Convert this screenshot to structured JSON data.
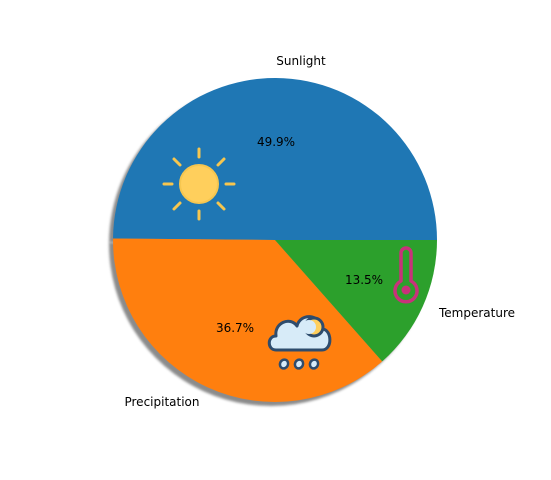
{
  "chart_data": {
    "type": "pie",
    "title": "",
    "categories": [
      "Sunlight",
      "Precipitation",
      "Temperature"
    ],
    "values": [
      49.9,
      36.7,
      13.5
    ],
    "percent_labels": [
      "49.9%",
      "36.7%",
      "13.5%"
    ],
    "colors": [
      "#1f77b4",
      "#ff7f0e",
      "#2ca02c"
    ],
    "start_angle_deg": 0,
    "direction": "counterclockwise",
    "shadow": true,
    "legend": "none",
    "icons": [
      "sun-icon",
      "rain-cloud-icon",
      "thermometer-icon"
    ]
  }
}
